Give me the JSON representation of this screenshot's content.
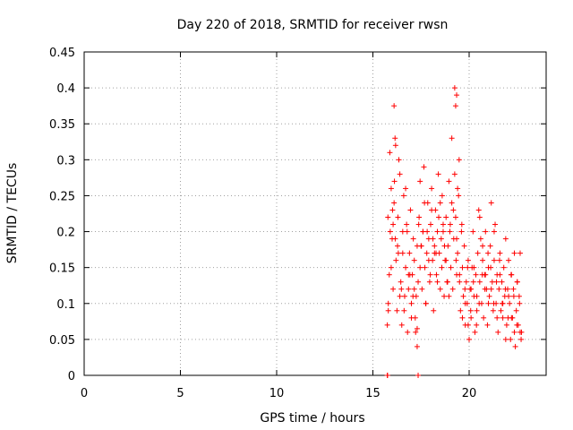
{
  "chart_data": {
    "type": "scatter",
    "title": "Day 220 of 2018, SRMTID for receiver rwsn",
    "xlabel": "GPS time / hours",
    "ylabel": "SRMTID / TECUs",
    "xlim": [
      0,
      24
    ],
    "ylim": [
      0,
      0.45
    ],
    "xticks": [
      0,
      5,
      10,
      15,
      20
    ],
    "xtick_labels": [
      "0",
      "5",
      "10",
      "15",
      "20"
    ],
    "yticks": [
      0,
      0.05,
      0.1,
      0.15,
      0.2,
      0.25,
      0.3,
      0.35,
      0.4,
      0.45
    ],
    "ytick_labels": [
      "0",
      "0.05",
      "0.1",
      "0.15",
      "0.2",
      "0.25",
      "0.3",
      "0.35",
      "0.4",
      "0.45"
    ],
    "grid": true,
    "marker": "+",
    "color": "#ff0000",
    "series": [
      {
        "name": "SRMTID",
        "x": [
          15.75,
          15.8,
          15.85,
          15.9,
          15.95,
          16.0,
          16.05,
          16.1,
          16.15,
          16.2,
          16.25,
          16.3,
          16.35,
          16.4,
          16.45,
          16.5,
          16.55,
          16.6,
          16.65,
          16.7,
          16.75,
          16.8,
          16.85,
          16.9,
          16.95,
          17.0,
          17.05,
          17.1,
          17.15,
          17.2,
          17.25,
          17.3,
          17.35,
          17.4,
          17.45,
          17.5,
          17.55,
          17.6,
          17.65,
          17.7,
          17.75,
          17.8,
          17.85,
          17.9,
          17.95,
          18.0,
          18.05,
          18.1,
          18.15,
          18.2,
          18.25,
          18.3,
          18.35,
          18.4,
          18.45,
          18.5,
          18.55,
          18.6,
          18.65,
          18.7,
          18.75,
          18.8,
          18.85,
          18.9,
          18.95,
          19.0,
          19.05,
          19.1,
          19.15,
          19.2,
          19.25,
          19.3,
          19.35,
          19.4,
          19.45,
          19.5,
          19.55,
          19.6,
          19.65,
          19.7,
          19.75,
          19.8,
          19.85,
          19.9,
          19.95,
          20.0,
          20.05,
          20.1,
          20.15,
          20.2,
          20.25,
          20.3,
          20.35,
          20.4,
          20.45,
          20.5,
          20.55,
          20.6,
          20.65,
          20.7,
          20.75,
          20.8,
          20.85,
          20.9,
          20.95,
          21.0,
          21.05,
          21.1,
          21.15,
          21.2,
          21.25,
          21.3,
          21.35,
          21.4,
          21.45,
          21.5,
          21.55,
          21.6,
          21.65,
          21.7,
          21.75,
          21.8,
          21.85,
          21.9,
          21.95,
          22.0,
          22.05,
          22.1,
          22.15,
          22.2,
          22.25,
          22.3,
          22.35,
          22.4,
          22.45,
          22.5,
          22.55,
          22.6,
          22.65,
          22.7,
          15.8,
          15.95,
          16.05,
          16.12,
          16.18,
          16.28,
          16.4,
          16.55,
          16.7,
          16.85,
          17.0,
          17.15,
          17.3,
          17.45,
          17.6,
          17.75,
          17.9,
          18.05,
          18.2,
          18.35,
          18.5,
          18.65,
          18.8,
          18.95,
          19.1,
          19.25,
          19.35,
          19.4,
          19.5,
          19.65,
          19.8,
          19.95,
          20.1,
          20.25,
          20.4,
          20.55,
          20.7,
          20.85,
          21.0,
          21.15,
          21.3,
          21.45,
          21.6,
          21.75,
          21.9,
          22.05,
          22.2,
          22.35,
          22.5,
          22.65,
          15.78,
          15.88,
          16.02,
          16.16,
          16.32,
          16.48,
          16.62,
          16.78,
          16.92,
          17.08,
          17.22,
          17.38,
          17.52,
          17.68,
          17.82,
          17.98,
          18.12,
          18.28,
          18.42,
          18.58,
          18.72,
          18.88,
          19.02,
          19.18,
          19.32,
          19.48,
          19.62,
          19.78,
          19.92,
          20.08,
          20.22,
          20.38,
          20.52,
          20.68,
          20.82,
          20.98,
          21.12,
          21.28,
          21.42,
          21.58,
          21.72,
          21.88,
          22.02,
          22.18,
          22.32,
          22.48,
          22.62,
          22.72,
          16.1,
          19.35,
          19.3,
          17.35,
          17.3,
          15.75,
          15.76
        ],
        "y": [
          0.07,
          0.1,
          0.14,
          0.2,
          0.26,
          0.19,
          0.12,
          0.24,
          0.33,
          0.16,
          0.09,
          0.22,
          0.3,
          0.28,
          0.13,
          0.07,
          0.17,
          0.25,
          0.11,
          0.15,
          0.21,
          0.06,
          0.12,
          0.17,
          0.23,
          0.1,
          0.14,
          0.19,
          0.16,
          0.08,
          0.11,
          0.04,
          0.13,
          0.22,
          0.27,
          0.18,
          0.12,
          0.2,
          0.29,
          0.15,
          0.1,
          0.17,
          0.24,
          0.19,
          0.13,
          0.21,
          0.26,
          0.16,
          0.09,
          0.18,
          0.23,
          0.14,
          0.2,
          0.28,
          0.17,
          0.12,
          0.19,
          0.25,
          0.21,
          0.11,
          0.16,
          0.22,
          0.13,
          0.18,
          0.27,
          0.2,
          0.15,
          0.24,
          0.12,
          0.19,
          0.28,
          0.22,
          0.14,
          0.17,
          0.25,
          0.13,
          0.09,
          0.2,
          0.15,
          0.11,
          0.18,
          0.07,
          0.13,
          0.1,
          0.16,
          0.05,
          0.12,
          0.08,
          0.15,
          0.2,
          0.11,
          0.06,
          0.14,
          0.09,
          0.17,
          0.23,
          0.13,
          0.19,
          0.1,
          0.16,
          0.08,
          0.14,
          0.2,
          0.12,
          0.07,
          0.15,
          0.11,
          0.18,
          0.24,
          0.13,
          0.09,
          0.16,
          0.21,
          0.1,
          0.14,
          0.06,
          0.12,
          0.17,
          0.09,
          0.13,
          0.08,
          0.15,
          0.11,
          0.19,
          0.07,
          0.12,
          0.16,
          0.1,
          0.05,
          0.14,
          0.08,
          0.12,
          0.17,
          0.04,
          0.09,
          0.13,
          0.07,
          0.11,
          0.06,
          0.05,
          0.09,
          0.15,
          0.21,
          0.27,
          0.32,
          0.18,
          0.11,
          0.2,
          0.26,
          0.14,
          0.08,
          0.12,
          0.18,
          0.15,
          0.2,
          0.1,
          0.16,
          0.23,
          0.17,
          0.13,
          0.24,
          0.2,
          0.16,
          0.11,
          0.33,
          0.4,
          0.19,
          0.26,
          0.14,
          0.08,
          0.1,
          0.07,
          0.12,
          0.15,
          0.11,
          0.22,
          0.18,
          0.14,
          0.1,
          0.12,
          0.2,
          0.08,
          0.14,
          0.1,
          0.05,
          0.11,
          0.08,
          0.06,
          0.13,
          0.17,
          0.22,
          0.31,
          0.23,
          0.19,
          0.17,
          0.12,
          0.09,
          0.2,
          0.14,
          0.11,
          0.06,
          0.21,
          0.18,
          0.24,
          0.2,
          0.14,
          0.19,
          0.17,
          0.22,
          0.15,
          0.18,
          0.13,
          0.21,
          0.23,
          0.16,
          0.3,
          0.21,
          0.12,
          0.15,
          0.09,
          0.13,
          0.07,
          0.1,
          0.14,
          0.12,
          0.17,
          0.15,
          0.1,
          0.13,
          0.16,
          0.1,
          0.12,
          0.08,
          0.14,
          0.11,
          0.07,
          0.1,
          0.06,
          0.375,
          0.39,
          0.375,
          0.0,
          0.065,
          0.0,
          0.0
        ]
      }
    ]
  }
}
